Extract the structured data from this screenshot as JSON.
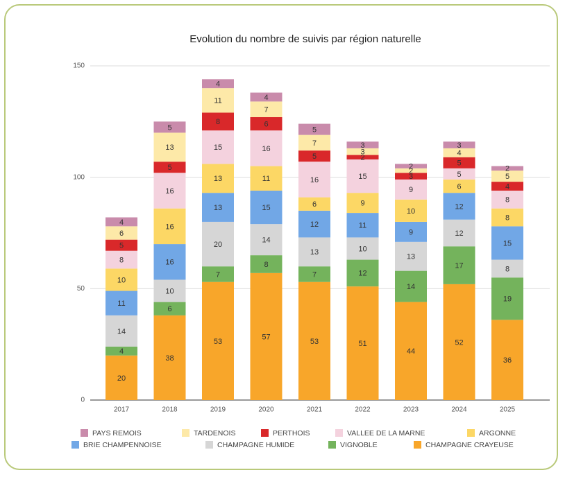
{
  "chart_data": {
    "type": "bar",
    "stacked": true,
    "title": "Evolution du nombre de suivis par région naturelle",
    "categories": [
      "2017",
      "2018",
      "2019",
      "2020",
      "2021",
      "2022",
      "2023",
      "2024",
      "2025"
    ],
    "ylim": [
      0,
      150
    ],
    "yticks": [
      0,
      50,
      100,
      150
    ],
    "grid": true,
    "series": [
      {
        "name": "CHAMPAGNE CRAYEUSE",
        "color": "#f8a62a",
        "values": [
          20,
          38,
          53,
          57,
          53,
          51,
          44,
          52,
          36
        ]
      },
      {
        "name": "VIGNOBLE",
        "color": "#74b35c",
        "values": [
          4,
          6,
          7,
          8,
          7,
          12,
          14,
          17,
          19
        ]
      },
      {
        "name": "CHAMPAGNE HUMIDE",
        "color": "#d6d6d6",
        "values": [
          14,
          10,
          20,
          14,
          13,
          10,
          13,
          12,
          8
        ]
      },
      {
        "name": "BRIE CHAMPENNOISE",
        "color": "#71a7e6",
        "values": [
          11,
          16,
          13,
          15,
          12,
          11,
          9,
          12,
          15
        ]
      },
      {
        "name": "ARGONNE",
        "color": "#fcd765",
        "values": [
          10,
          16,
          13,
          11,
          6,
          9,
          10,
          6,
          8
        ]
      },
      {
        "name": "VALLEE DE LA MARNE",
        "color": "#f4d2de",
        "values": [
          8,
          16,
          15,
          16,
          16,
          15,
          9,
          5,
          8
        ]
      },
      {
        "name": "PERTHOIS",
        "color": "#d9282a",
        "values": [
          5,
          5,
          8,
          6,
          5,
          2,
          3,
          5,
          4
        ]
      },
      {
        "name": "TARDENOIS",
        "color": "#fde9a8",
        "values": [
          6,
          13,
          11,
          7,
          7,
          3,
          2,
          4,
          5
        ]
      },
      {
        "name": "PAYS REMOIS",
        "color": "#c98bab",
        "values": [
          4,
          5,
          4,
          4,
          5,
          3,
          2,
          3,
          2
        ]
      }
    ]
  }
}
